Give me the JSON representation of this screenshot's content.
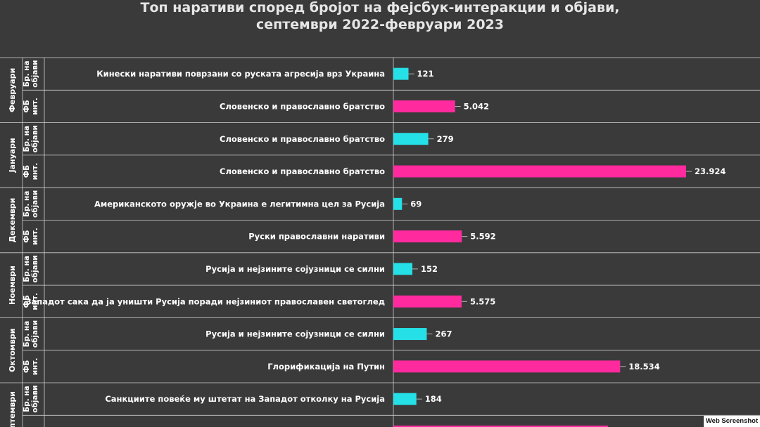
{
  "title": {
    "line1": "Топ наративи според бројот на фејсбук-интеракции и објави,",
    "line2": "септември 2022-февруари 2023"
  },
  "watermark": "Web Screenshot",
  "colors": {
    "background": "#3a3a3a",
    "grid": "#cfcfcf",
    "text": "#ffffff",
    "posts": "#25e0e6",
    "interactions": "#ff2a9e"
  },
  "chart_data": {
    "type": "bar",
    "orientation": "horizontal",
    "series_types": {
      "posts": "Бр. на објави",
      "interactions": "ФБ инт."
    },
    "rows": [
      {
        "month": "Февруари",
        "metric": "posts",
        "type_label": "Бр. на објави",
        "category": "Кинески наративи поврзани со руската агресија врз Украина",
        "value": 121,
        "value_label": "121"
      },
      {
        "month": "Февруари",
        "metric": "interactions",
        "type_label": "ФБ инт.",
        "category": "Словенско и православно братство",
        "value": 5042,
        "value_label": "5.042"
      },
      {
        "month": "Јануари",
        "metric": "posts",
        "type_label": "Бр. на објави",
        "category": "Словенско и православно братство",
        "value": 279,
        "value_label": "279"
      },
      {
        "month": "Јануари",
        "metric": "interactions",
        "type_label": "ФБ инт.",
        "category": "Словенско и православно братство",
        "value": 23924,
        "value_label": "23.924"
      },
      {
        "month": "Декември",
        "metric": "posts",
        "type_label": "Бр. на објави",
        "category": "Американското оружје во Украина е легитимна цел за Русија",
        "value": 69,
        "value_label": "69"
      },
      {
        "month": "Декември",
        "metric": "interactions",
        "type_label": "ФБ инт.",
        "category": "Руски православни наративи",
        "value": 5592,
        "value_label": "5.592"
      },
      {
        "month": "Ноември",
        "metric": "posts",
        "type_label": "Бр. на објави",
        "category": "Русија и нејзините сојузници се силни",
        "value": 152,
        "value_label": "152"
      },
      {
        "month": "Ноември",
        "metric": "interactions",
        "type_label": "ФБ инт.",
        "category": "Западот сака да ја уништи Русија поради нејзиниот православен светоглед",
        "value": 5575,
        "value_label": "5.575"
      },
      {
        "month": "Октомври",
        "metric": "posts",
        "type_label": "Бр. на објави",
        "category": "Русија и нејзините сојузници се силни",
        "value": 267,
        "value_label": "267"
      },
      {
        "month": "Октомври",
        "metric": "interactions",
        "type_label": "ФБ инт.",
        "category": "Глорификација на Путин",
        "value": 18534,
        "value_label": "18.534"
      },
      {
        "month": "Септември",
        "metric": "posts",
        "type_label": "Бр. на објави",
        "category": "Санкциите повеќе му штетат на Западот отколку на Русија",
        "value": 184,
        "value_label": "184"
      }
    ],
    "months": [
      "Февруари",
      "Јануари",
      "Декември",
      "Ноември",
      "Октомври",
      "Септември"
    ],
    "posts_scale_max": 410,
    "interactions_scale_max": 24000
  }
}
